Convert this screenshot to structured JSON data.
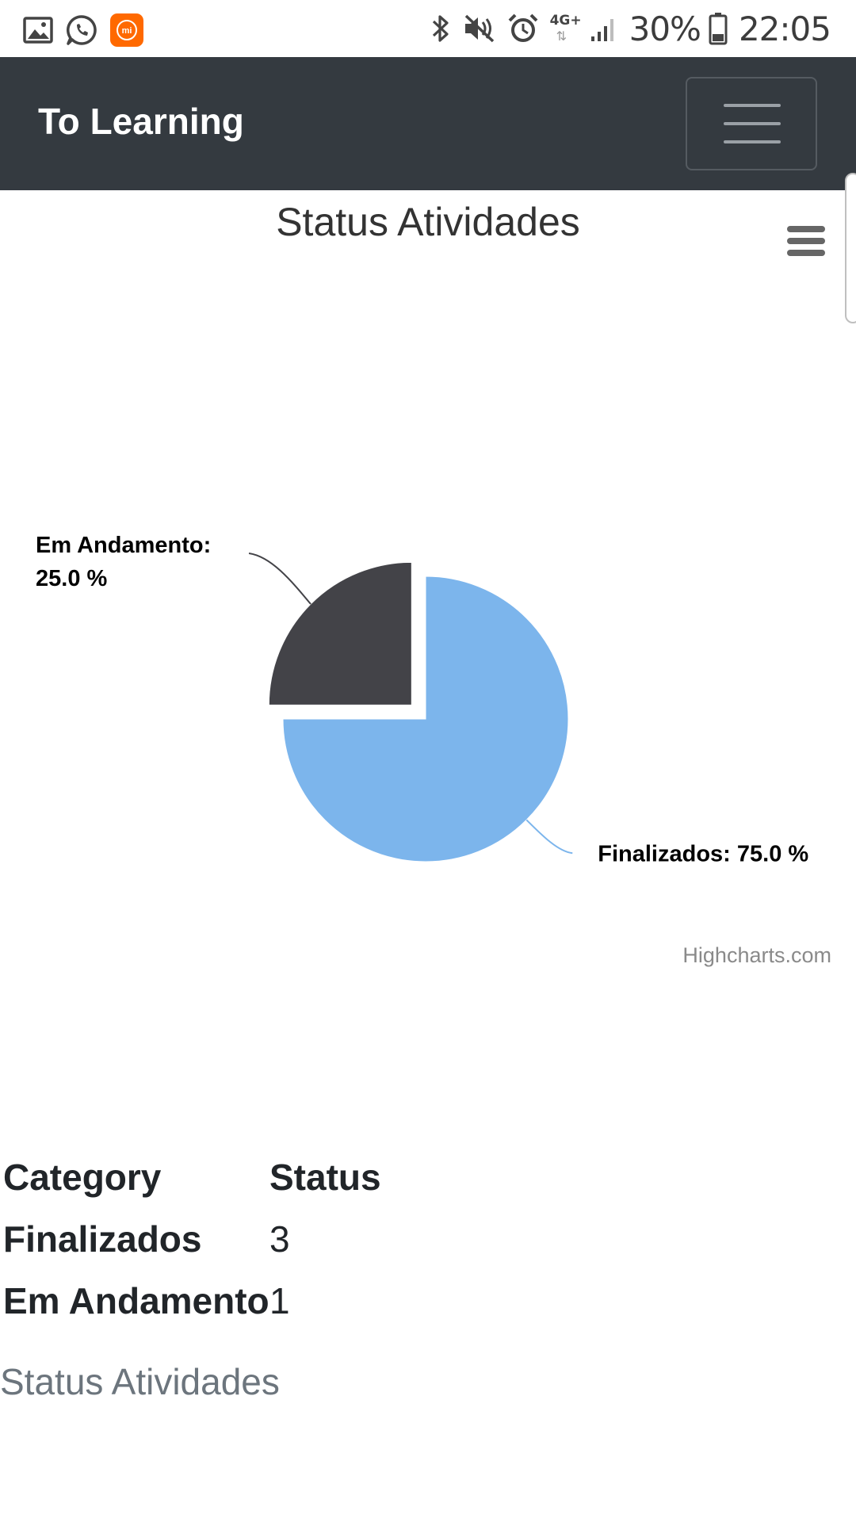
{
  "status_bar": {
    "battery": "30%",
    "time": "22:05",
    "network": "4G+",
    "icons_left": [
      "gallery-icon",
      "whatsapp-icon",
      "mi-app-icon"
    ],
    "icons_right": [
      "bluetooth-icon",
      "muted-icon",
      "alarm-icon",
      "network-4g-icon",
      "signal-icon",
      "battery-icon"
    ],
    "mi_color": "#ff6900"
  },
  "navbar": {
    "brand": "To Learning",
    "background": "#343a40",
    "toggler_icon": "hamburger-icon"
  },
  "chart": {
    "menu_icon": "hamburger-menu-icon",
    "credits": "Highcharts.com"
  },
  "chart_data": {
    "type": "pie",
    "title": "Status Atividades",
    "slices": [
      {
        "name": "Finalizados",
        "label": "Finalizados: 75.0 %",
        "value": 75.0,
        "color": "#7cb5ec",
        "sliced": false
      },
      {
        "name": "Em Andamento",
        "label_lines": [
          "Em Andamento:",
          "25.0 %"
        ],
        "value": 25.0,
        "color": "#434348",
        "sliced": true
      }
    ]
  },
  "table": {
    "headers": [
      "Category",
      "Status"
    ],
    "rows": [
      {
        "category": "Finalizados",
        "status": "3"
      },
      {
        "category": "Em Andamento",
        "status": "1"
      }
    ],
    "caption": "Status Atividades"
  }
}
